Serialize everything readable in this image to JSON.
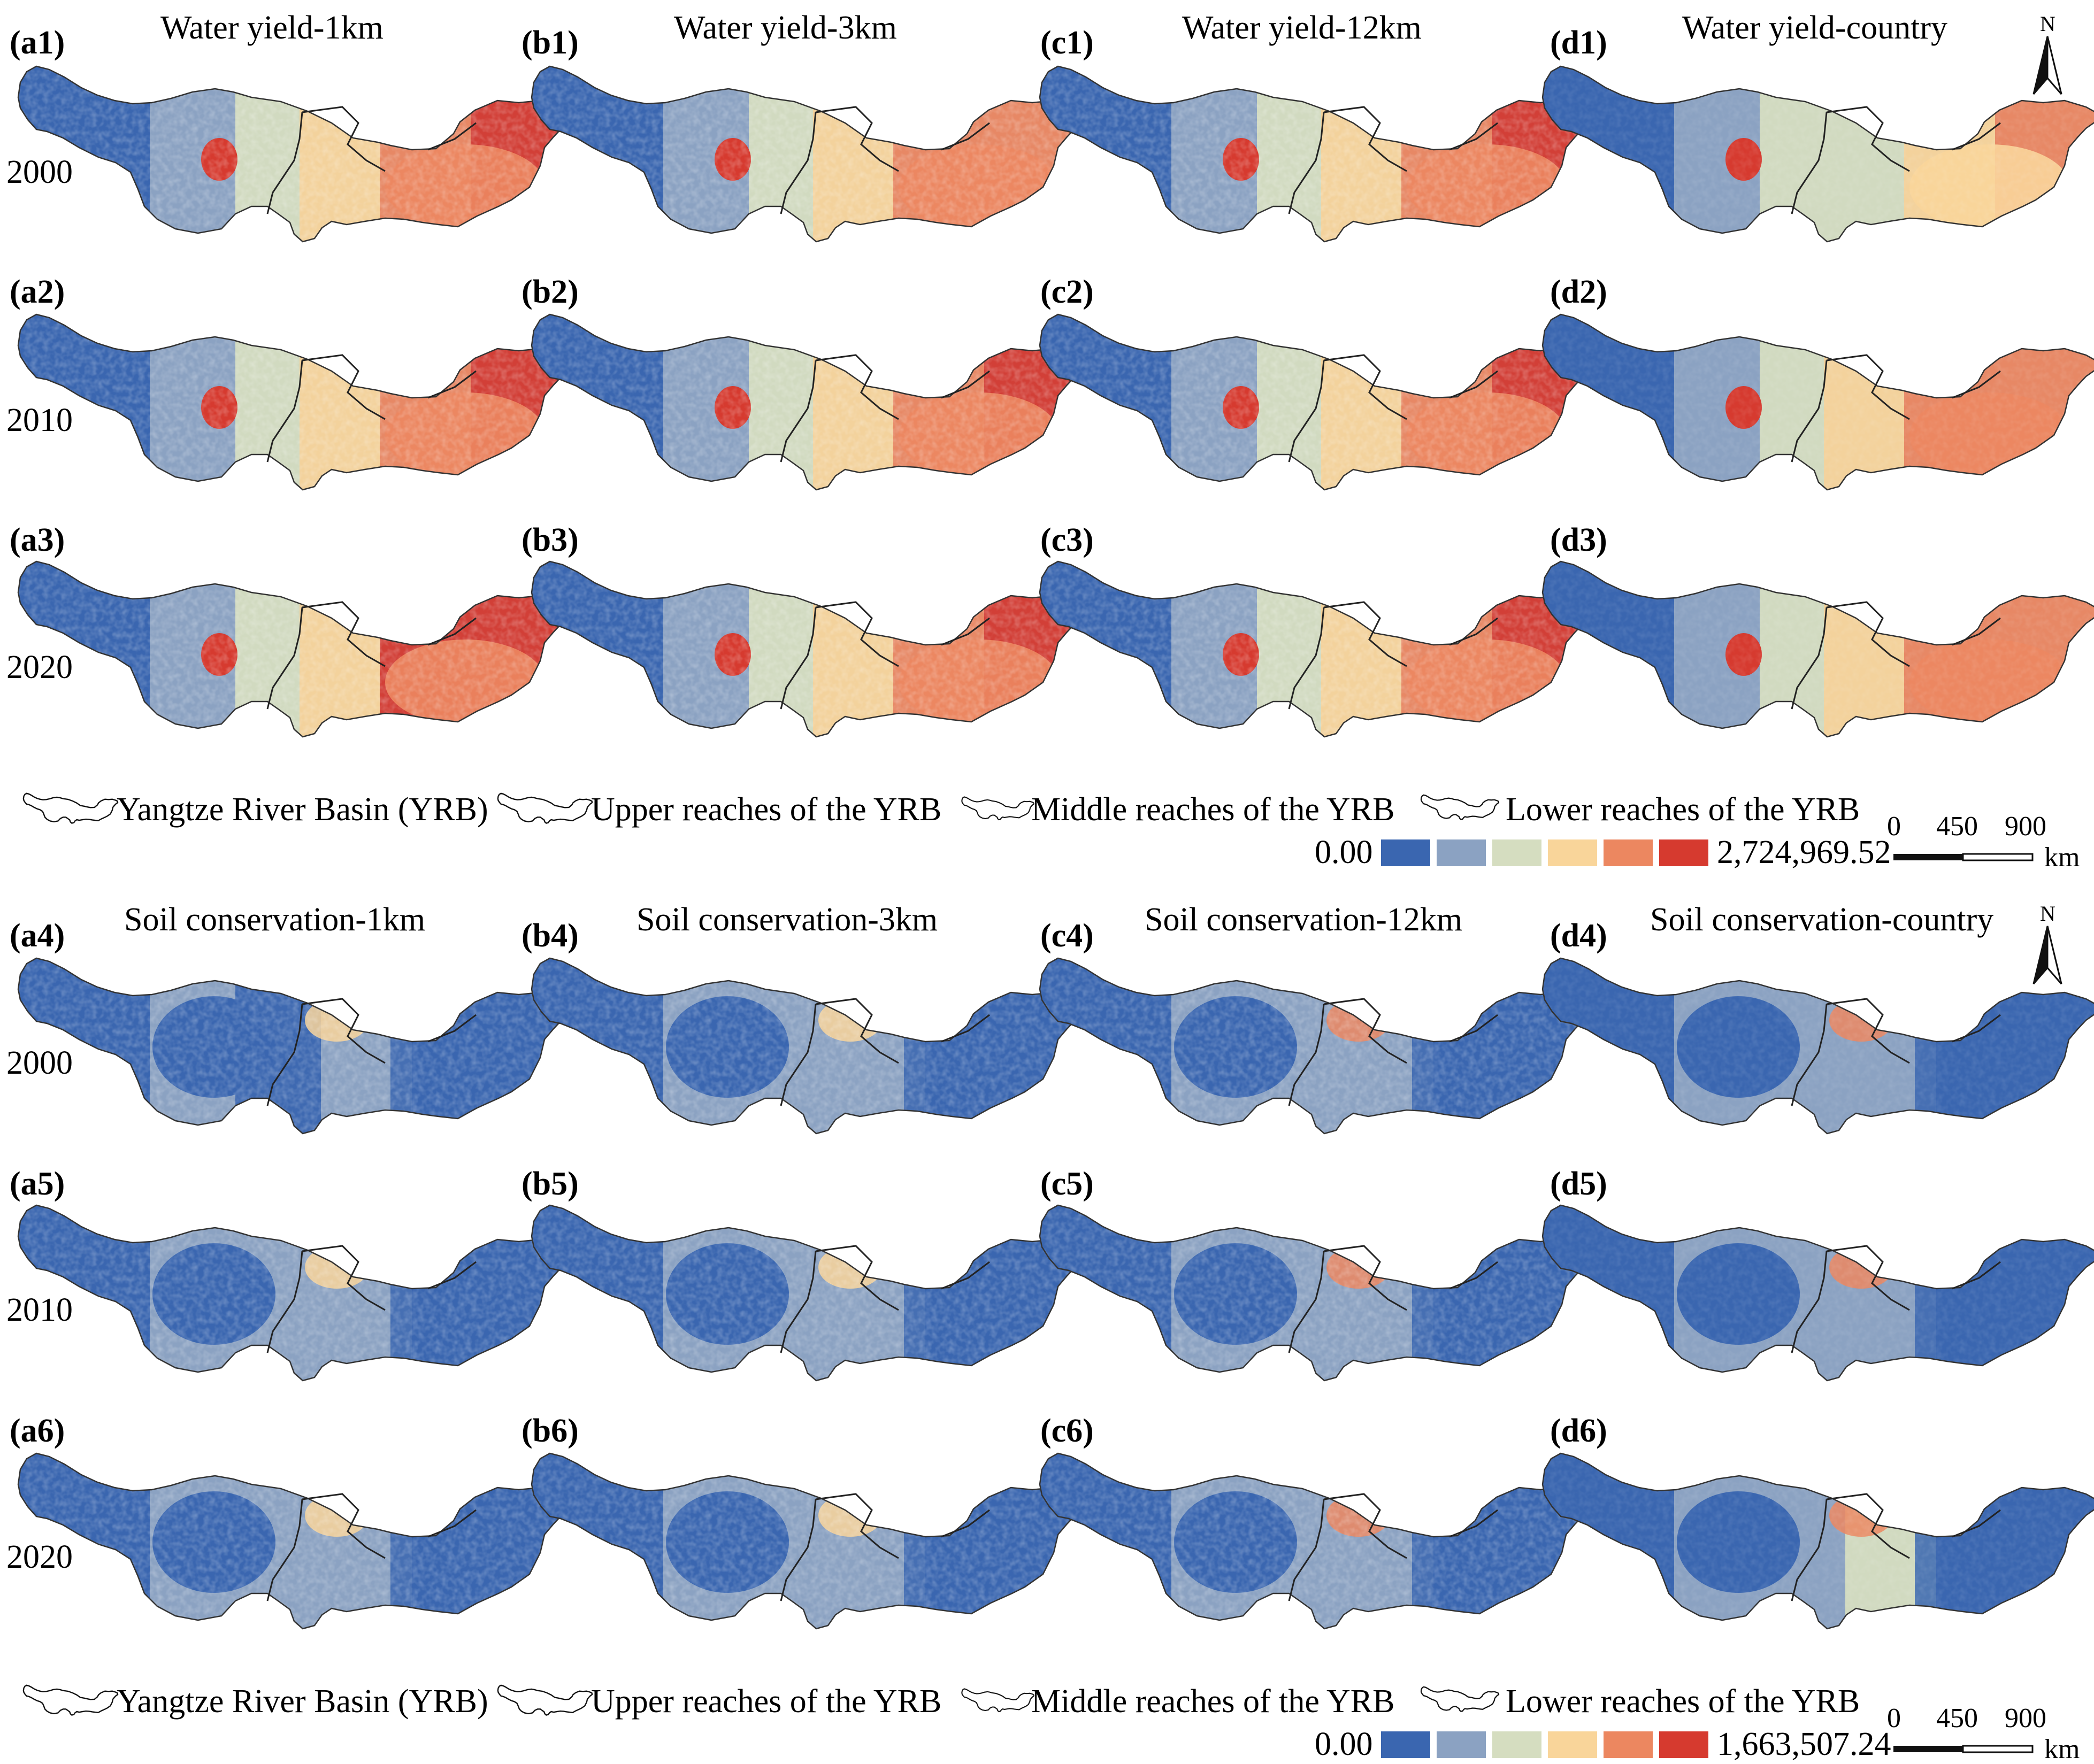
{
  "sections": [
    {
      "id": "water",
      "column_titles": [
        "Water yield-1km",
        "Water yield-3km",
        "Water yield-12km",
        "Water yield-country"
      ],
      "panel_labels": [
        [
          "(a1)",
          "(b1)",
          "(c1)",
          "(d1)"
        ],
        [
          "(a2)",
          "(b2)",
          "(c2)",
          "(d2)"
        ],
        [
          "(a3)",
          "(b3)",
          "(c3)",
          "(d3)"
        ]
      ],
      "years": [
        "2000",
        "2010",
        "2020"
      ],
      "legend_min": "0.00",
      "legend_max": "2,724,969.52",
      "intensity": [
        [
          0.78,
          0.74,
          0.76,
          0.62
        ],
        [
          0.86,
          0.83,
          0.84,
          0.7
        ],
        [
          0.88,
          0.85,
          0.86,
          0.72
        ]
      ]
    },
    {
      "id": "soil",
      "column_titles": [
        "Soil conservation-1km",
        "Soil conservation-3km",
        "Soil conservation-12km",
        "Soil conservation-country"
      ],
      "panel_labels": [
        [
          "(a4)",
          "(b4)",
          "(c4)",
          "(d4)"
        ],
        [
          "(a5)",
          "(b5)",
          "(c5)",
          "(d5)"
        ],
        [
          "(a6)",
          "(b6)",
          "(c6)",
          "(d6)"
        ]
      ],
      "years": [
        "2000",
        "2010",
        "2020"
      ],
      "legend_min": "0.00",
      "legend_max": "1,663,507.24",
      "intensity": [
        [
          0.3,
          0.38,
          0.5,
          0.55
        ],
        [
          0.32,
          0.4,
          0.52,
          0.56
        ],
        [
          0.34,
          0.42,
          0.55,
          0.6
        ]
      ]
    }
  ],
  "legend_outlines": [
    "Yangtze River Basin (YRB)",
    "Upper reaches of the YRB",
    "Middle reaches of the YRB",
    "Lower reaches of the YRB"
  ],
  "scale_bar": {
    "ticks": [
      "0",
      "450",
      "900"
    ],
    "unit": "km"
  },
  "north_arrow_label": "N",
  "color_classes": [
    "#3a66b0",
    "#8ba2c2",
    "#d5ddc0",
    "#f9d59a",
    "#ec8760",
    "#d63a2f"
  ]
}
